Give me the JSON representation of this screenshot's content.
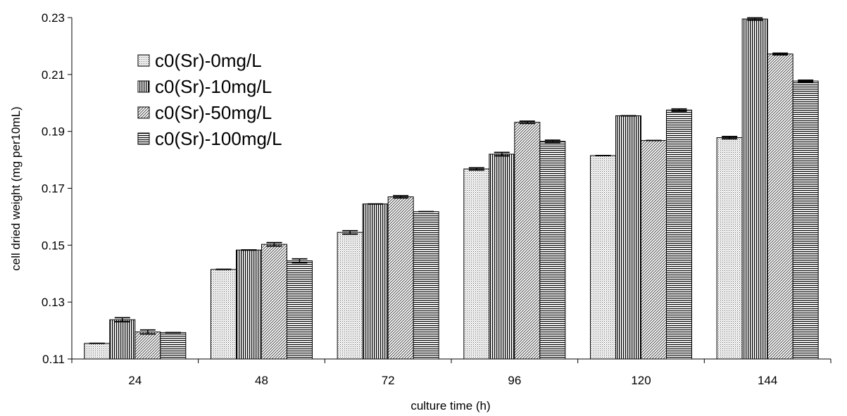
{
  "chart_data": {
    "type": "bar",
    "title": "",
    "xlabel": "culture time (h)",
    "ylabel": "cell dried weight (mg per10mL)",
    "categories": [
      "24",
      "48",
      "72",
      "96",
      "120",
      "144"
    ],
    "ylim": [
      0.11,
      0.23
    ],
    "yticks": [
      "0.11",
      "0.13",
      "0.15",
      "0.17",
      "0.19",
      "0.21",
      "0.23"
    ],
    "grid": false,
    "legend_position": "top-left",
    "series": [
      {
        "name": "c0(Sr)-0mg/L",
        "pattern": "dots",
        "values": [
          0.1155,
          0.1415,
          0.1545,
          0.1768,
          0.1815,
          0.1878
        ],
        "errors": [
          0.0,
          0.0,
          0.0006,
          0.0004,
          0.0,
          0.0004
        ]
      },
      {
        "name": "c0(Sr)-10mg/L",
        "pattern": "vertical",
        "values": [
          0.1238,
          0.1483,
          0.1645,
          0.182,
          0.1955,
          0.2295
        ],
        "errors": [
          0.0007,
          0.0,
          0.0,
          0.0006,
          0.0,
          0.0004
        ]
      },
      {
        "name": "c0(Sr)-50mg/L",
        "pattern": "diagonal",
        "values": [
          0.1195,
          0.1503,
          0.167,
          0.1932,
          0.1868,
          0.2172
        ],
        "errors": [
          0.0007,
          0.0006,
          0.0004,
          0.0004,
          0.0,
          0.0003
        ]
      },
      {
        "name": "c0(Sr)-100mg/L",
        "pattern": "horizontal",
        "values": [
          0.1193,
          0.1445,
          0.1618,
          0.1865,
          0.1975,
          0.2077
        ],
        "errors": [
          0.0,
          0.0007,
          0.0,
          0.0004,
          0.0004,
          0.0003
        ]
      }
    ]
  }
}
